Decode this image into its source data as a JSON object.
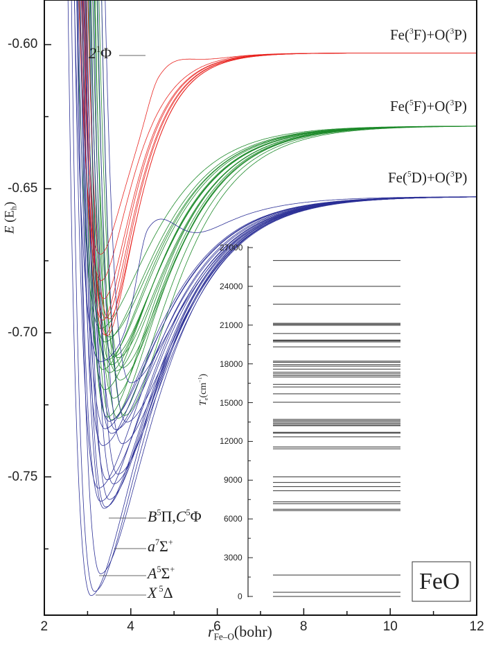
{
  "chart_data": {
    "type": "line",
    "title": "",
    "xlabel": [
      {
        "t": "r",
        "s": "it"
      },
      {
        "t": "Fe–O",
        "s": "sub"
      },
      {
        "t": "(bohr)",
        "s": ""
      }
    ],
    "ylabel": [
      {
        "t": "E",
        "s": "it"
      },
      {
        "t": " (E",
        "s": ""
      },
      {
        "t": "h",
        "s": "sub"
      },
      {
        "t": ")",
        "s": ""
      }
    ],
    "xlim": [
      2,
      12
    ],
    "ylim": [
      -0.798,
      -0.5845
    ],
    "xticks": [
      "2",
      "4",
      "6",
      "8",
      "10",
      "12"
    ],
    "yticks": [
      "-0.60",
      "-0.65",
      "-0.70",
      "-0.75"
    ],
    "colors": {
      "red": "#e8231f",
      "green": "#1d8a2a",
      "blue": "#2b2f96"
    },
    "ground_state_min": -0.7912,
    "asymptotes": [
      {
        "group": "red",
        "E": -0.6029,
        "label": [
          {
            "t": "Fe(",
            "s": ""
          },
          {
            "t": "3",
            "s": "sup"
          },
          {
            "t": "F)+O(",
            "s": ""
          },
          {
            "t": "3",
            "s": "sup"
          },
          {
            "t": "P)",
            "s": ""
          }
        ]
      },
      {
        "group": "green",
        "E": -0.6282,
        "label": [
          {
            "t": "Fe(",
            "s": ""
          },
          {
            "t": "5",
            "s": "sup"
          },
          {
            "t": "F)+O(",
            "s": ""
          },
          {
            "t": "3",
            "s": "sup"
          },
          {
            "t": "P)",
            "s": ""
          }
        ]
      },
      {
        "group": "blue",
        "E": -0.6527,
        "label": [
          {
            "t": "Fe(",
            "s": ""
          },
          {
            "t": "5",
            "s": "sup"
          },
          {
            "t": "D)+O(",
            "s": ""
          },
          {
            "t": "3",
            "s": "sup"
          },
          {
            "t": "P)",
            "s": ""
          }
        ]
      }
    ],
    "state_labels": [
      [
        {
          "t": "2",
          "s": "it"
        },
        {
          "t": "1",
          "s": "sup"
        },
        {
          "t": "Φ",
          "s": ""
        }
      ],
      [
        {
          "t": "B",
          "s": "it"
        },
        {
          "t": "5",
          "s": "sup"
        },
        {
          "t": "Π,",
          "s": ""
        },
        {
          "t": "C",
          "s": "it"
        },
        {
          "t": "5",
          "s": "sup"
        },
        {
          "t": "Φ",
          "s": ""
        }
      ],
      [
        {
          "t": "a",
          "s": "it"
        },
        {
          "t": "7",
          "s": "sup"
        },
        {
          "t": "Σ",
          "s": ""
        },
        {
          "t": "+",
          "s": "sup"
        }
      ],
      [
        {
          "t": "A",
          "s": "it"
        },
        {
          "t": "5",
          "s": "sup"
        },
        {
          "t": "Σ",
          "s": ""
        },
        {
          "t": "+",
          "s": "sup"
        }
      ],
      [
        {
          "t": "X",
          "s": "it"
        },
        {
          "t": " 5",
          "s": "sup"
        },
        {
          "t": "Δ",
          "s": ""
        }
      ]
    ],
    "states": [
      {
        "Te": 0,
        "re": 3.08,
        "group": "blue"
      },
      {
        "Te": 320,
        "re": 3.16,
        "group": "blue"
      },
      {
        "Te": 1660,
        "re": 3.3,
        "group": "blue"
      },
      {
        "Te": 6640,
        "re": 3.38,
        "group": "blue"
      },
      {
        "Te": 6750,
        "re": 3.42,
        "group": "blue"
      },
      {
        "Te": 7180,
        "re": 3.3,
        "group": "blue"
      },
      {
        "Te": 7320,
        "re": 3.5,
        "group": "blue"
      },
      {
        "Te": 8180,
        "re": 3.25,
        "group": "blue"
      },
      {
        "Te": 8500,
        "re": 3.6,
        "group": "blue"
      },
      {
        "Te": 8820,
        "re": 3.45,
        "group": "blue"
      },
      {
        "Te": 9250,
        "re": 3.7,
        "group": "blue"
      },
      {
        "Te": 11430,
        "re": 3.35,
        "group": "blue"
      },
      {
        "Te": 11570,
        "re": 3.8,
        "group": "blue"
      },
      {
        "Te": 12350,
        "re": 3.55,
        "group": "blue"
      },
      {
        "Te": 12640,
        "re": 3.65,
        "group": "blue"
      },
      {
        "Te": 12710,
        "re": 3.4,
        "group": "blue"
      },
      {
        "Te": 13210,
        "re": 3.9,
        "group": "blue"
      },
      {
        "Te": 13280,
        "re": 3.5,
        "group": "blue"
      },
      {
        "Te": 16210,
        "re": 4.0,
        "group": "blue"
      },
      {
        "Te": 17820,
        "re": 3.3,
        "group": "blue",
        "barrier": [
          4.4,
          0.025
        ]
      },
      {
        "Te": 13390,
        "re": 3.55,
        "group": "green"
      },
      {
        "Te": 13500,
        "re": 3.7,
        "group": "green"
      },
      {
        "Te": 13600,
        "re": 3.45,
        "group": "green"
      },
      {
        "Te": 13710,
        "re": 3.85,
        "group": "green"
      },
      {
        "Te": 15030,
        "re": 3.6,
        "group": "green"
      },
      {
        "Te": 15680,
        "re": 3.4,
        "group": "green"
      },
      {
        "Te": 16410,
        "re": 3.75,
        "group": "green"
      },
      {
        "Te": 16980,
        "re": 3.5,
        "group": "green"
      },
      {
        "Te": 17100,
        "re": 3.65,
        "group": "green"
      },
      {
        "Te": 17230,
        "re": 3.35,
        "group": "green"
      },
      {
        "Te": 17350,
        "re": 3.8,
        "group": "green"
      },
      {
        "Te": 17590,
        "re": 3.55,
        "group": "green"
      },
      {
        "Te": 17940,
        "re": 3.45,
        "group": "green"
      },
      {
        "Te": 18120,
        "re": 3.7,
        "group": "green"
      },
      {
        "Te": 18210,
        "re": 3.6,
        "group": "green"
      },
      {
        "Te": 19320,
        "re": 3.4,
        "group": "green"
      },
      {
        "Te": 19700,
        "re": 3.5,
        "group": "green"
      },
      {
        "Te": 20350,
        "re": 3.3,
        "group": "green"
      },
      {
        "Te": 19780,
        "re": 3.45,
        "group": "red"
      },
      {
        "Te": 19850,
        "re": 3.4,
        "group": "red"
      },
      {
        "Te": 20980,
        "re": 3.35,
        "group": "red"
      },
      {
        "Te": 21070,
        "re": 3.5,
        "group": "red"
      },
      {
        "Te": 21140,
        "re": 3.42,
        "group": "red"
      },
      {
        "Te": 22620,
        "re": 3.38,
        "group": "red"
      },
      {
        "Te": 24000,
        "re": 3.32,
        "group": "red"
      },
      {
        "Te": 26000,
        "re": 3.3,
        "group": "red",
        "barrier": [
          4.65,
          0.009
        ]
      }
    ],
    "inset": {
      "type": "levels",
      "ylabel": [
        {
          "t": "T",
          "s": "it"
        },
        {
          "t": "e",
          "s": "sub"
        },
        {
          "t": "(cm",
          "s": ""
        },
        {
          "t": "−1",
          "s": "sup"
        },
        {
          "t": ")",
          "s": ""
        }
      ],
      "ylim": [
        0,
        27000
      ],
      "yticks": [
        "0",
        "3000",
        "6000",
        "9000",
        "12000",
        "15000",
        "18000",
        "21000",
        "24000",
        "27000"
      ],
      "levels": [
        0,
        320,
        1660,
        6640,
        6750,
        7180,
        7320,
        8180,
        8500,
        8820,
        9250,
        11430,
        11570,
        12350,
        12640,
        12710,
        13210,
        13280,
        13390,
        13500,
        13600,
        13710,
        15030,
        15680,
        16210,
        16410,
        16980,
        17100,
        17230,
        17350,
        17590,
        17820,
        17940,
        18120,
        18210,
        19320,
        19700,
        19780,
        19850,
        20350,
        20980,
        21070,
        21140,
        22620,
        24000,
        26000
      ],
      "legend": "FeO"
    }
  }
}
